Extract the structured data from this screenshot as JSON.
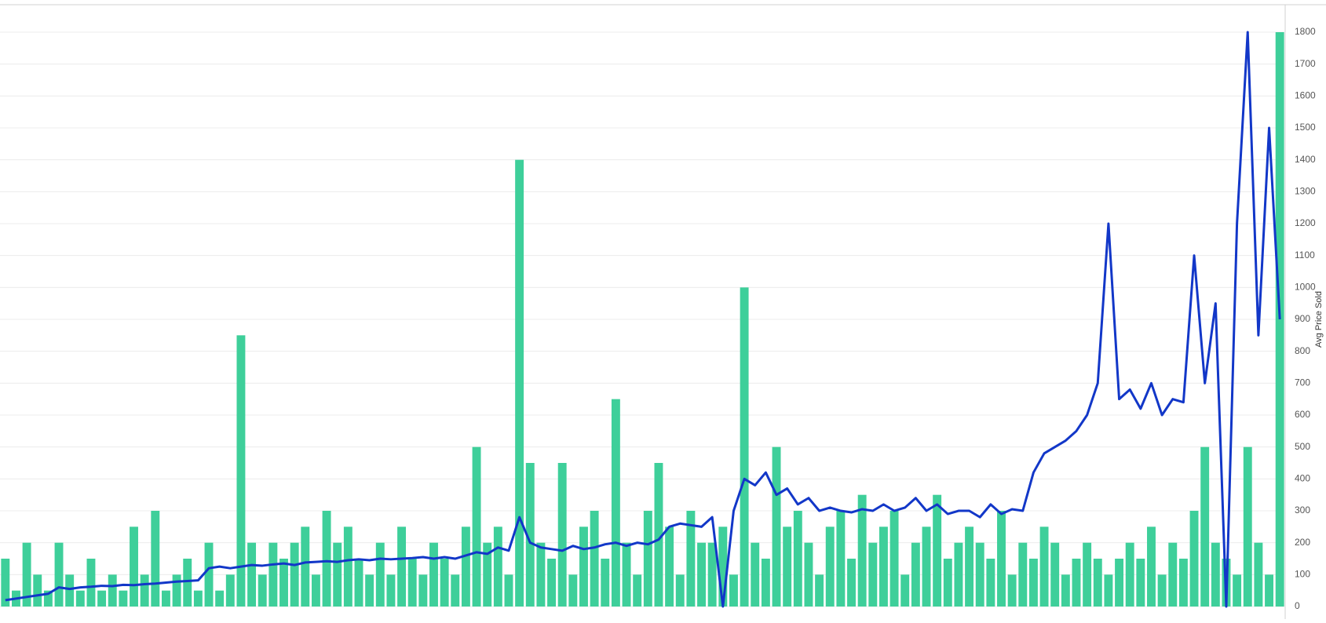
{
  "chart_data": {
    "type": "combo",
    "y_axis_label": "Avg Price Sold",
    "ylim": [
      0,
      1800
    ],
    "yticks": [
      0,
      100,
      200,
      300,
      400,
      500,
      600,
      700,
      800,
      900,
      1000,
      1100,
      1200,
      1300,
      1400,
      1500,
      1600,
      1700,
      1800
    ],
    "grid": true,
    "series": [
      {
        "type": "bar",
        "color": "#3ecf9a",
        "values": [
          150,
          50,
          200,
          100,
          50,
          200,
          100,
          50,
          150,
          50,
          100,
          50,
          250,
          100,
          300,
          50,
          100,
          150,
          50,
          200,
          50,
          100,
          850,
          200,
          100,
          200,
          150,
          200,
          250,
          100,
          300,
          200,
          250,
          150,
          100,
          200,
          100,
          250,
          150,
          100,
          200,
          150,
          100,
          250,
          500,
          200,
          250,
          100,
          1400,
          450,
          200,
          150,
          450,
          100,
          250,
          300,
          150,
          650,
          200,
          100,
          300,
          450,
          250,
          100,
          300,
          200,
          200,
          250,
          100,
          1000,
          200,
          150,
          500,
          250,
          300,
          200,
          100,
          250,
          300,
          150,
          350,
          200,
          250,
          300,
          100,
          200,
          250,
          350,
          150,
          200,
          250,
          200,
          150,
          300,
          100,
          200,
          150,
          250,
          200,
          100,
          150,
          200,
          150,
          100,
          150,
          200,
          150,
          250,
          100,
          200,
          150,
          300,
          500,
          200,
          150,
          100,
          500,
          200,
          100,
          1800
        ]
      },
      {
        "type": "line",
        "color": "#1237c8",
        "values": [
          20,
          25,
          30,
          35,
          40,
          60,
          55,
          60,
          62,
          65,
          64,
          68,
          67,
          70,
          72,
          75,
          78,
          80,
          82,
          120,
          125,
          120,
          125,
          130,
          128,
          132,
          135,
          130,
          138,
          140,
          142,
          140,
          145,
          148,
          145,
          150,
          148,
          150,
          152,
          155,
          150,
          155,
          150,
          160,
          170,
          165,
          185,
          175,
          280,
          200,
          185,
          180,
          175,
          190,
          180,
          185,
          195,
          200,
          190,
          200,
          195,
          210,
          250,
          260,
          255,
          250,
          280,
          0,
          300,
          400,
          380,
          420,
          350,
          370,
          320,
          340,
          300,
          310,
          300,
          295,
          305,
          300,
          320,
          300,
          310,
          340,
          300,
          320,
          290,
          300,
          300,
          280,
          320,
          290,
          305,
          300,
          420,
          480,
          500,
          520,
          550,
          600,
          700,
          1200,
          650,
          680,
          620,
          700,
          600,
          650,
          640,
          1100,
          700,
          950,
          0,
          1200,
          1800,
          850,
          1500,
          900
        ]
      }
    ]
  }
}
